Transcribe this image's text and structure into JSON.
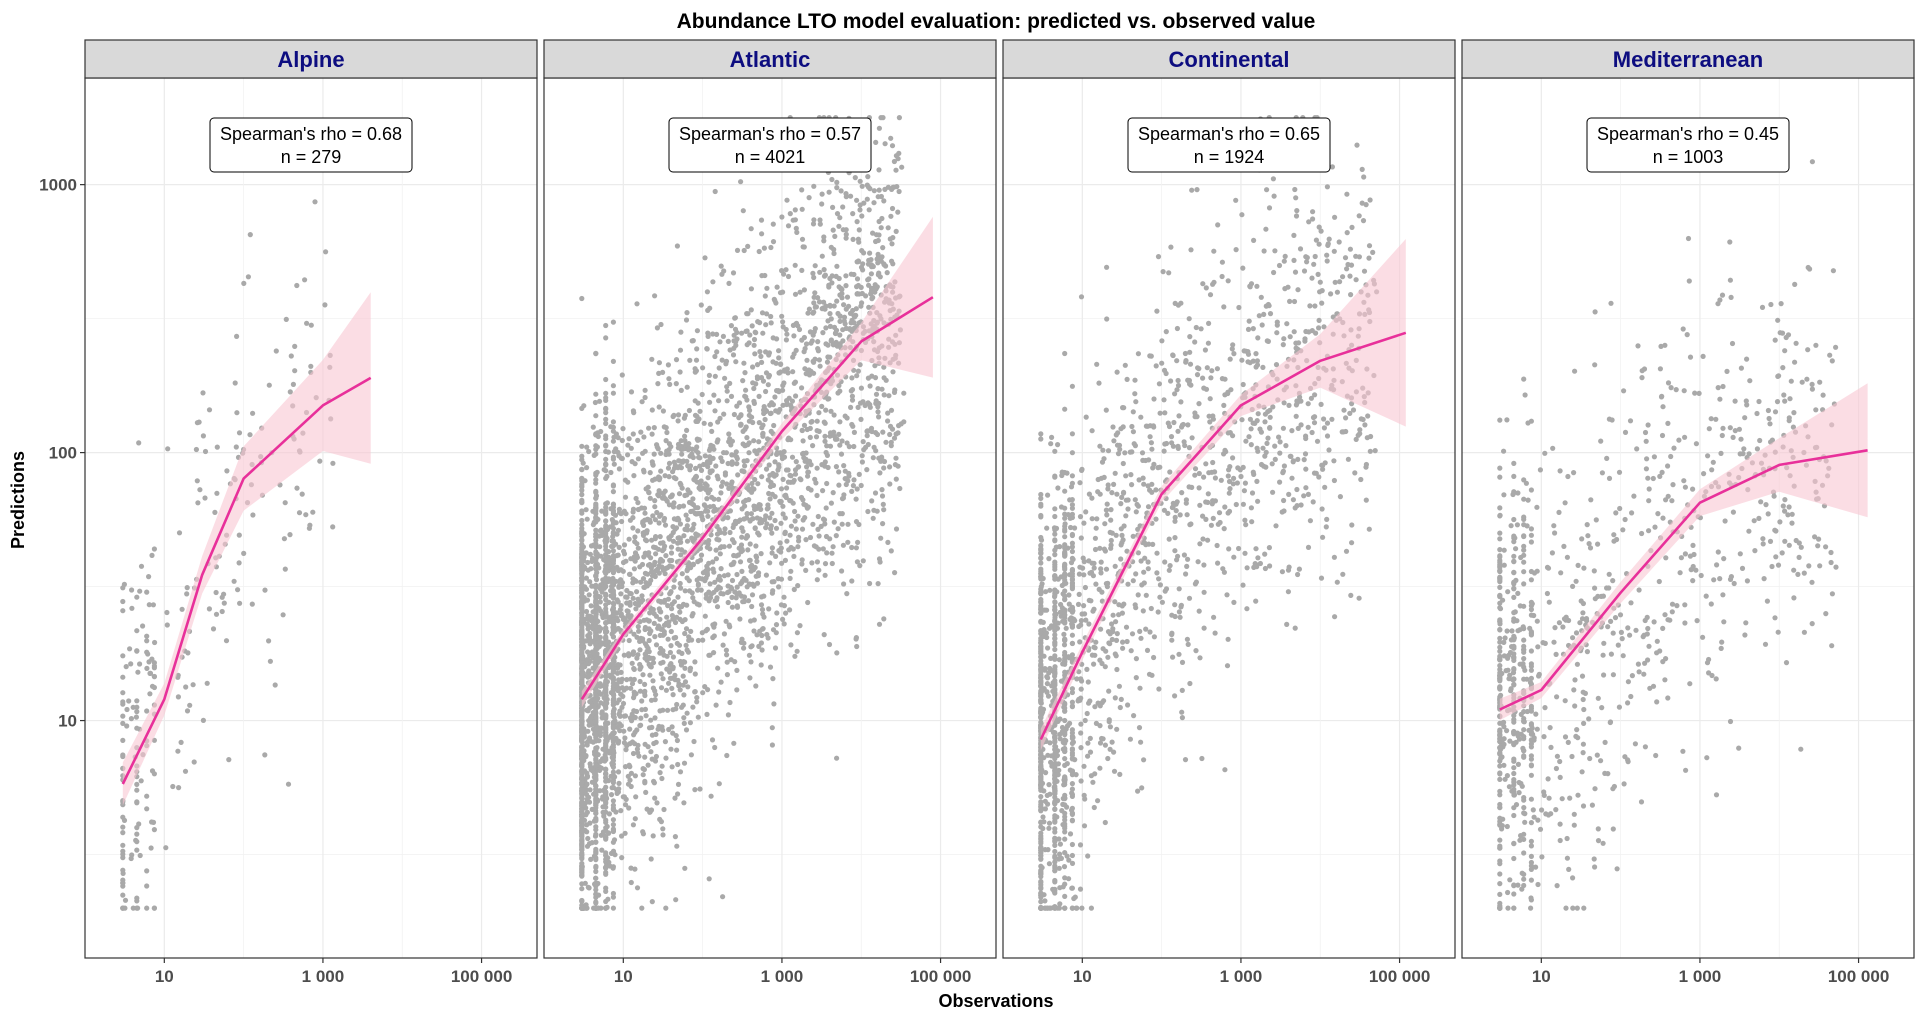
{
  "chart_data": {
    "type": "scatter",
    "title": "Abundance LTO model evaluation: predicted vs. observed value",
    "xlabel": "Observations",
    "ylabel": "Predictions",
    "x_scale": "log10",
    "y_scale": "log10",
    "xlim": [
      1,
      500000
    ],
    "ylim": [
      1.3,
      2500
    ],
    "x_ticks": [
      10,
      1000,
      100000
    ],
    "x_tick_labels": [
      "10",
      "1 000",
      "100 000"
    ],
    "y_ticks": [
      10,
      100,
      1000
    ],
    "y_tick_labels": [
      "10",
      "100",
      "1000"
    ],
    "grid": true,
    "colors": {
      "points": "#a9a9a9",
      "trend_line": "#e8309a",
      "confidence_band": "#f9c6d2",
      "strip_fill": "#d9d9d9",
      "strip_text": "#0d0d80"
    },
    "panels": [
      {
        "name": "Alpine",
        "annotation_rho": "Spearman's rho = 0.68",
        "annotation_n": "n = 279",
        "n_points": 279,
        "x_range": [
          3,
          4000
        ],
        "point_y_sd": 0.42,
        "trend": [
          [
            3,
            5.8
          ],
          [
            10,
            12
          ],
          [
            30,
            35
          ],
          [
            100,
            80
          ],
          [
            1000,
            150
          ],
          [
            4000,
            190
          ]
        ],
        "band_halfwidth_log10": [
          0.08,
          0.06,
          0.07,
          0.12,
          0.17,
          0.32
        ]
      },
      {
        "name": "Atlantic",
        "annotation_rho": "Spearman's rho = 0.57",
        "annotation_n": "n = 4021",
        "n_points": 4021,
        "x_range": [
          3,
          80000
        ],
        "point_y_sd": 0.42,
        "trend": [
          [
            3,
            12
          ],
          [
            10,
            21
          ],
          [
            100,
            48
          ],
          [
            1000,
            120
          ],
          [
            10000,
            260
          ],
          [
            80000,
            380
          ]
        ],
        "band_halfwidth_log10": [
          0.03,
          0.02,
          0.02,
          0.03,
          0.07,
          0.3
        ]
      },
      {
        "name": "Continental",
        "annotation_rho": "Spearman's rho = 0.65",
        "annotation_n": "n = 1924",
        "n_points": 1924,
        "x_range": [
          3,
          120000
        ],
        "point_y_sd": 0.42,
        "trend": [
          [
            3,
            8.5
          ],
          [
            10,
            18
          ],
          [
            100,
            70
          ],
          [
            1000,
            150
          ],
          [
            10000,
            220
          ],
          [
            120000,
            280
          ]
        ],
        "band_halfwidth_log10": [
          0.04,
          0.03,
          0.03,
          0.04,
          0.1,
          0.35
        ]
      },
      {
        "name": "Mediterranean",
        "annotation_rho": "Spearman's rho = 0.45",
        "annotation_n": "n = 1003",
        "n_points": 1003,
        "x_range": [
          3,
          130000
        ],
        "point_y_sd": 0.42,
        "trend": [
          [
            3,
            11
          ],
          [
            10,
            13
          ],
          [
            100,
            30
          ],
          [
            1000,
            65
          ],
          [
            10000,
            90
          ],
          [
            130000,
            102
          ]
        ],
        "band_halfwidth_log10": [
          0.04,
          0.03,
          0.04,
          0.05,
          0.1,
          0.25
        ]
      }
    ]
  }
}
